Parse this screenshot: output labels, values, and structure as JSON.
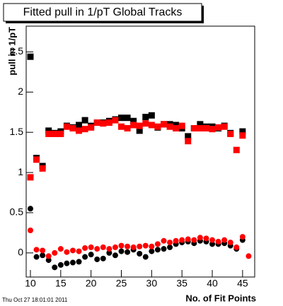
{
  "chart_data": {
    "type": "scatter",
    "title": "Fitted pull in 1/pT  Global Tracks",
    "x_label": "No. of Fit Points",
    "y_label": "pull in 1/pT",
    "timestamp": "Thu Oct 27 18:01:01 2011",
    "x": [
      10,
      11,
      12,
      13,
      14,
      15,
      16,
      17,
      18,
      19,
      20,
      21,
      22,
      23,
      24,
      25,
      26,
      27,
      28,
      29,
      30,
      31,
      32,
      33,
      34,
      35,
      36,
      37,
      38,
      39,
      40,
      41,
      42,
      43,
      44,
      45,
      46
    ],
    "xlim": [
      9.3,
      47
    ],
    "xticks": [
      10,
      15,
      20,
      25,
      30,
      35,
      40,
      45
    ],
    "ylim": [
      -0.3,
      2.82
    ],
    "yticks": [
      0,
      0.5,
      1,
      1.5,
      2,
      2.5
    ],
    "series": [
      {
        "color": "#000000",
        "marker": "square",
        "values": [
          2.44,
          1.18,
          1.08,
          1.52,
          1.49,
          1.51,
          1.58,
          1.56,
          1.59,
          1.65,
          1.58,
          1.62,
          1.62,
          1.64,
          1.66,
          1.68,
          1.68,
          1.64,
          1.52,
          1.69,
          1.71,
          1.56,
          1.6,
          1.6,
          1.59,
          1.55,
          1.45,
          1.55,
          1.6,
          1.57,
          1.57,
          1.55,
          1.58,
          1.49,
          null,
          1.51,
          null
        ]
      },
      {
        "color": "#ff0000",
        "marker": "square",
        "values": [
          0.94,
          1.16,
          1.05,
          1.48,
          1.48,
          1.48,
          1.57,
          1.55,
          1.52,
          1.54,
          1.56,
          1.62,
          1.61,
          1.62,
          1.65,
          1.57,
          1.55,
          1.59,
          1.58,
          1.61,
          1.59,
          1.57,
          1.6,
          1.57,
          1.55,
          1.58,
          1.39,
          1.55,
          1.55,
          1.55,
          1.54,
          1.56,
          1.57,
          1.48,
          1.28,
          1.46,
          null
        ]
      },
      {
        "color": "#000000",
        "marker": "circle",
        "values": [
          0.55,
          -0.05,
          -0.03,
          -0.09,
          -0.18,
          -0.15,
          -0.13,
          -0.12,
          -0.11,
          -0.05,
          -0.02,
          -0.08,
          -0.07,
          0.0,
          -0.03,
          0.02,
          0.01,
          0.04,
          -0.01,
          -0.05,
          0.02,
          0.04,
          0.05,
          0.07,
          0.11,
          0.13,
          0.14,
          0.12,
          0.15,
          0.14,
          0.11,
          0.11,
          0.12,
          0.09,
          0.05,
          0.16,
          null
        ]
      },
      {
        "color": "#ff0000",
        "marker": "circle",
        "values": [
          0.28,
          0.04,
          0.03,
          -0.04,
          0.0,
          0.05,
          0.01,
          0.03,
          0.02,
          0.06,
          0.07,
          0.05,
          0.07,
          0.05,
          0.07,
          0.09,
          0.08,
          0.07,
          0.08,
          0.09,
          0.08,
          0.11,
          0.15,
          0.13,
          0.15,
          0.16,
          0.17,
          0.16,
          0.19,
          0.18,
          0.16,
          0.14,
          0.16,
          0.13,
          0.07,
          0.2,
          -0.04
        ]
      }
    ]
  }
}
